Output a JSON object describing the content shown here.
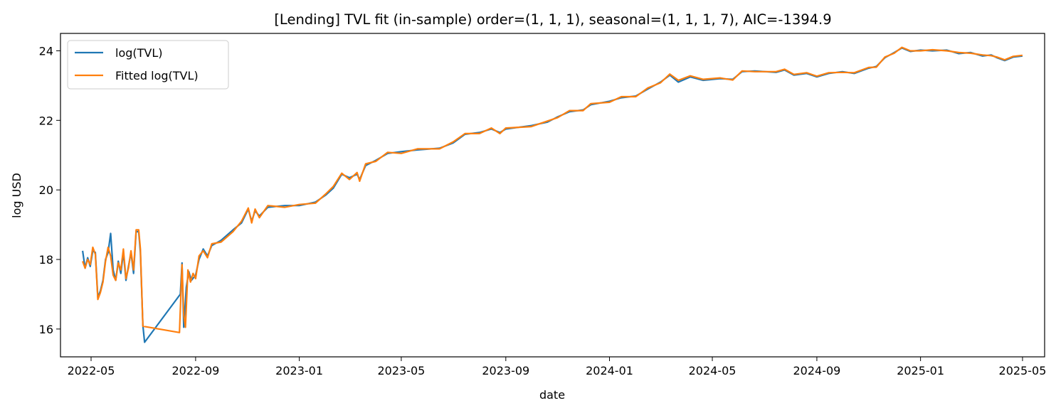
{
  "chart_data": {
    "type": "line",
    "title": "[Lending] TVL fit (in-sample)  order=(1, 1, 1), seasonal=(1, 1, 1, 7), AIC=-1394.9",
    "xlabel": "date",
    "ylabel": "log USD",
    "xlim": [
      "2022-03-26",
      "2025-05-27"
    ],
    "ylim": [
      15.2,
      24.5
    ],
    "x_ticks": [
      "2022-05",
      "2022-09",
      "2023-01",
      "2023-05",
      "2023-09",
      "2024-01",
      "2024-05",
      "2024-09",
      "2025-01",
      "2025-05"
    ],
    "y_ticks": [
      16,
      18,
      20,
      22,
      24
    ],
    "grid": false,
    "legend": "upper-left",
    "series": [
      {
        "name": "log(TVL)",
        "color": "#1f77b4",
        "points": [
          [
            "2022-04-21",
            18.25
          ],
          [
            "2022-04-24",
            17.75
          ],
          [
            "2022-04-27",
            18.05
          ],
          [
            "2022-04-30",
            17.8
          ],
          [
            "2022-05-03",
            18.25
          ],
          [
            "2022-05-06",
            18.2
          ],
          [
            "2022-05-09",
            16.9
          ],
          [
            "2022-05-12",
            17.1
          ],
          [
            "2022-05-15",
            17.4
          ],
          [
            "2022-05-18",
            18.0
          ],
          [
            "2022-05-21",
            18.2
          ],
          [
            "2022-05-24",
            18.75
          ],
          [
            "2022-05-27",
            17.7
          ],
          [
            "2022-05-30",
            17.4
          ],
          [
            "2022-06-02",
            17.95
          ],
          [
            "2022-06-05",
            17.6
          ],
          [
            "2022-06-08",
            18.2
          ],
          [
            "2022-06-11",
            17.4
          ],
          [
            "2022-06-14",
            17.8
          ],
          [
            "2022-06-17",
            18.2
          ],
          [
            "2022-06-20",
            17.6
          ],
          [
            "2022-06-23",
            18.8
          ],
          [
            "2022-06-26",
            18.8
          ],
          [
            "2022-06-28",
            18.2
          ],
          [
            "2022-07-01",
            16.1
          ],
          [
            "2022-07-03",
            15.62
          ],
          [
            "2022-08-14",
            17.0
          ],
          [
            "2022-08-16",
            17.9
          ],
          [
            "2022-08-18",
            16.05
          ],
          [
            "2022-08-21",
            17.2
          ],
          [
            "2022-08-24",
            17.65
          ],
          [
            "2022-08-27",
            17.4
          ],
          [
            "2022-09-01",
            17.55
          ],
          [
            "2022-09-05",
            18.0
          ],
          [
            "2022-09-10",
            18.3
          ],
          [
            "2022-09-15",
            18.1
          ],
          [
            "2022-09-20",
            18.4
          ],
          [
            "2022-10-01",
            18.55
          ],
          [
            "2022-10-15",
            18.85
          ],
          [
            "2022-10-25",
            19.05
          ],
          [
            "2022-11-02",
            19.45
          ],
          [
            "2022-11-06",
            19.1
          ],
          [
            "2022-11-10",
            19.4
          ],
          [
            "2022-11-15",
            19.25
          ],
          [
            "2022-11-25",
            19.5
          ],
          [
            "2022-12-15",
            19.55
          ],
          [
            "2023-01-01",
            19.55
          ],
          [
            "2023-01-20",
            19.65
          ],
          [
            "2023-02-01",
            19.85
          ],
          [
            "2023-02-10",
            20.05
          ],
          [
            "2023-02-20",
            20.45
          ],
          [
            "2023-03-01",
            20.35
          ],
          [
            "2023-03-10",
            20.45
          ],
          [
            "2023-03-13",
            20.3
          ],
          [
            "2023-03-20",
            20.7
          ],
          [
            "2023-04-01",
            20.85
          ],
          [
            "2023-04-15",
            21.05
          ],
          [
            "2023-05-01",
            21.1
          ],
          [
            "2023-05-20",
            21.15
          ],
          [
            "2023-06-15",
            21.2
          ],
          [
            "2023-07-01",
            21.35
          ],
          [
            "2023-07-15",
            21.6
          ],
          [
            "2023-08-01",
            21.65
          ],
          [
            "2023-08-15",
            21.75
          ],
          [
            "2023-08-25",
            21.65
          ],
          [
            "2023-09-01",
            21.75
          ],
          [
            "2023-10-01",
            21.85
          ],
          [
            "2023-10-20",
            21.95
          ],
          [
            "2023-11-01",
            22.1
          ],
          [
            "2023-11-15",
            22.25
          ],
          [
            "2023-12-01",
            22.3
          ],
          [
            "2023-12-10",
            22.45
          ],
          [
            "2024-01-01",
            22.55
          ],
          [
            "2024-01-15",
            22.65
          ],
          [
            "2024-02-01",
            22.7
          ],
          [
            "2024-02-15",
            22.9
          ],
          [
            "2024-03-01",
            23.1
          ],
          [
            "2024-03-12",
            23.3
          ],
          [
            "2024-03-22",
            23.1
          ],
          [
            "2024-04-05",
            23.25
          ],
          [
            "2024-04-20",
            23.15
          ],
          [
            "2024-05-10",
            23.2
          ],
          [
            "2024-05-25",
            23.18
          ],
          [
            "2024-06-05",
            23.4
          ],
          [
            "2024-06-20",
            23.42
          ],
          [
            "2024-07-15",
            23.38
          ],
          [
            "2024-07-25",
            23.45
          ],
          [
            "2024-08-05",
            23.3
          ],
          [
            "2024-08-20",
            23.35
          ],
          [
            "2024-09-01",
            23.25
          ],
          [
            "2024-09-15",
            23.35
          ],
          [
            "2024-10-01",
            23.4
          ],
          [
            "2024-10-15",
            23.35
          ],
          [
            "2024-11-01",
            23.5
          ],
          [
            "2024-11-10",
            23.55
          ],
          [
            "2024-11-20",
            23.8
          ],
          [
            "2024-12-01",
            23.95
          ],
          [
            "2024-12-10",
            24.08
          ],
          [
            "2024-12-20",
            23.98
          ],
          [
            "2025-01-01",
            24.02
          ],
          [
            "2025-01-15",
            24.0
          ],
          [
            "2025-02-01",
            24.02
          ],
          [
            "2025-02-15",
            23.92
          ],
          [
            "2025-03-01",
            23.95
          ],
          [
            "2025-03-15",
            23.85
          ],
          [
            "2025-03-25",
            23.88
          ],
          [
            "2025-04-01",
            23.8
          ],
          [
            "2025-04-10",
            23.72
          ],
          [
            "2025-04-20",
            23.82
          ],
          [
            "2025-05-01",
            23.85
          ]
        ]
      },
      {
        "name": "Fitted log(TVL)",
        "color": "#ff7f0e",
        "points": [
          [
            "2022-04-21",
            17.95
          ],
          [
            "2022-04-24",
            17.75
          ],
          [
            "2022-04-27",
            18.0
          ],
          [
            "2022-04-30",
            17.85
          ],
          [
            "2022-05-03",
            18.35
          ],
          [
            "2022-05-06",
            18.15
          ],
          [
            "2022-05-09",
            16.85
          ],
          [
            "2022-05-12",
            17.05
          ],
          [
            "2022-05-15",
            17.35
          ],
          [
            "2022-05-18",
            17.95
          ],
          [
            "2022-05-21",
            18.35
          ],
          [
            "2022-05-24",
            18.1
          ],
          [
            "2022-05-27",
            17.55
          ],
          [
            "2022-05-30",
            17.4
          ],
          [
            "2022-06-02",
            17.9
          ],
          [
            "2022-06-05",
            17.7
          ],
          [
            "2022-06-08",
            18.3
          ],
          [
            "2022-06-11",
            17.45
          ],
          [
            "2022-06-14",
            17.75
          ],
          [
            "2022-06-17",
            18.25
          ],
          [
            "2022-06-20",
            17.7
          ],
          [
            "2022-06-23",
            18.85
          ],
          [
            "2022-06-26",
            18.85
          ],
          [
            "2022-06-28",
            18.3
          ],
          [
            "2022-07-01",
            16.08
          ],
          [
            "2022-08-13",
            15.9
          ],
          [
            "2022-08-16",
            17.85
          ],
          [
            "2022-08-18",
            16.4
          ],
          [
            "2022-08-20",
            16.05
          ],
          [
            "2022-08-23",
            17.7
          ],
          [
            "2022-08-26",
            17.35
          ],
          [
            "2022-08-29",
            17.6
          ],
          [
            "2022-09-01",
            17.45
          ],
          [
            "2022-09-05",
            18.1
          ],
          [
            "2022-09-10",
            18.25
          ],
          [
            "2022-09-15",
            18.05
          ],
          [
            "2022-09-20",
            18.45
          ],
          [
            "2022-10-01",
            18.5
          ],
          [
            "2022-10-15",
            18.8
          ],
          [
            "2022-10-25",
            19.1
          ],
          [
            "2022-11-02",
            19.48
          ],
          [
            "2022-11-06",
            19.05
          ],
          [
            "2022-11-10",
            19.45
          ],
          [
            "2022-11-15",
            19.2
          ],
          [
            "2022-11-25",
            19.55
          ],
          [
            "2022-12-15",
            19.5
          ],
          [
            "2023-01-01",
            19.58
          ],
          [
            "2023-01-20",
            19.62
          ],
          [
            "2023-02-01",
            19.88
          ],
          [
            "2023-02-10",
            20.1
          ],
          [
            "2023-02-20",
            20.48
          ],
          [
            "2023-03-01",
            20.3
          ],
          [
            "2023-03-10",
            20.5
          ],
          [
            "2023-03-13",
            20.25
          ],
          [
            "2023-03-20",
            20.75
          ],
          [
            "2023-04-01",
            20.82
          ],
          [
            "2023-04-15",
            21.08
          ],
          [
            "2023-05-01",
            21.05
          ],
          [
            "2023-05-20",
            21.18
          ],
          [
            "2023-06-15",
            21.18
          ],
          [
            "2023-07-01",
            21.38
          ],
          [
            "2023-07-15",
            21.62
          ],
          [
            "2023-08-01",
            21.62
          ],
          [
            "2023-08-15",
            21.78
          ],
          [
            "2023-08-25",
            21.62
          ],
          [
            "2023-09-01",
            21.78
          ],
          [
            "2023-10-01",
            21.82
          ],
          [
            "2023-10-20",
            21.98
          ],
          [
            "2023-11-01",
            22.08
          ],
          [
            "2023-11-15",
            22.28
          ],
          [
            "2023-12-01",
            22.28
          ],
          [
            "2023-12-10",
            22.48
          ],
          [
            "2024-01-01",
            22.52
          ],
          [
            "2024-01-15",
            22.68
          ],
          [
            "2024-02-01",
            22.68
          ],
          [
            "2024-02-15",
            22.93
          ],
          [
            "2024-03-01",
            23.08
          ],
          [
            "2024-03-12",
            23.33
          ],
          [
            "2024-03-22",
            23.15
          ],
          [
            "2024-04-05",
            23.28
          ],
          [
            "2024-04-20",
            23.18
          ],
          [
            "2024-05-10",
            23.22
          ],
          [
            "2024-05-25",
            23.16
          ],
          [
            "2024-06-05",
            23.42
          ],
          [
            "2024-06-20",
            23.4
          ],
          [
            "2024-07-15",
            23.4
          ],
          [
            "2024-07-25",
            23.47
          ],
          [
            "2024-08-05",
            23.32
          ],
          [
            "2024-08-20",
            23.37
          ],
          [
            "2024-09-01",
            23.27
          ],
          [
            "2024-09-15",
            23.37
          ],
          [
            "2024-10-01",
            23.38
          ],
          [
            "2024-10-15",
            23.37
          ],
          [
            "2024-11-01",
            23.52
          ],
          [
            "2024-11-10",
            23.53
          ],
          [
            "2024-11-20",
            23.82
          ],
          [
            "2024-12-01",
            23.93
          ],
          [
            "2024-12-10",
            24.1
          ],
          [
            "2024-12-20",
            24.0
          ],
          [
            "2025-01-01",
            24.0
          ],
          [
            "2025-01-15",
            24.03
          ],
          [
            "2025-02-01",
            24.0
          ],
          [
            "2025-02-15",
            23.95
          ],
          [
            "2025-03-01",
            23.93
          ],
          [
            "2025-03-15",
            23.88
          ],
          [
            "2025-03-25",
            23.86
          ],
          [
            "2025-04-01",
            23.82
          ],
          [
            "2025-04-10",
            23.74
          ],
          [
            "2025-04-20",
            23.84
          ],
          [
            "2025-05-01",
            23.87
          ]
        ]
      }
    ]
  }
}
